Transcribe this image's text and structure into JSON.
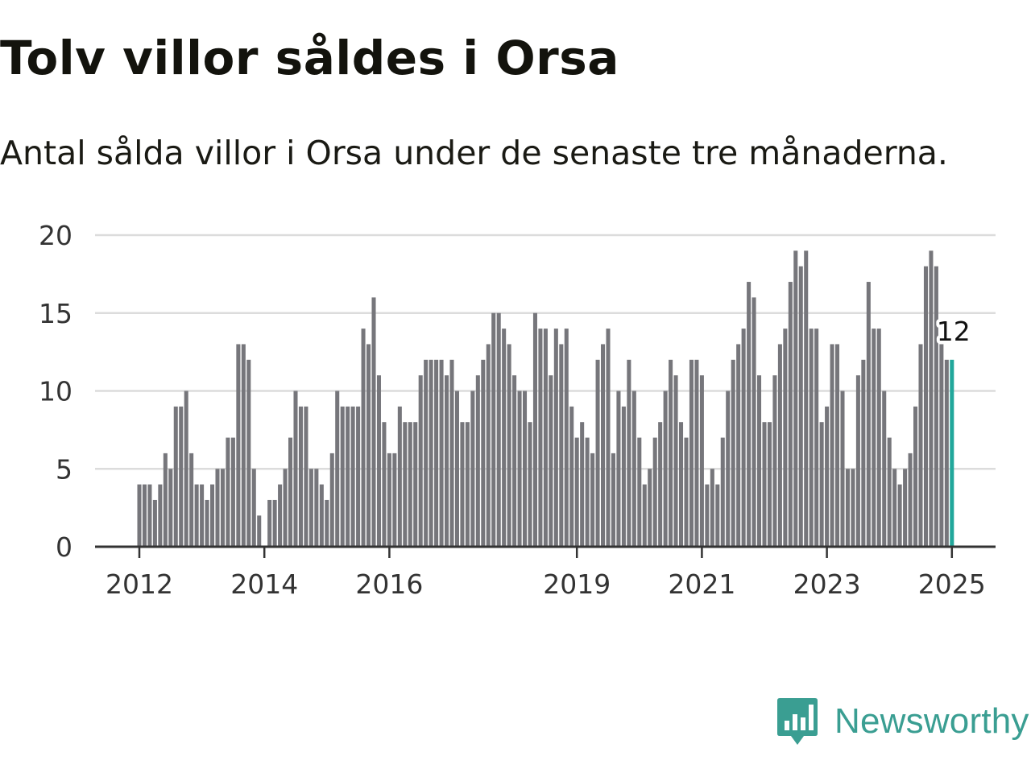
{
  "title": "Tolv villor såldes i Orsa",
  "subtitle": "Antal sålda villor i Orsa under de senaste tre månaderna.",
  "brand": {
    "name": "Newsworthy",
    "logo_icon": "newsworthy-bar-chart-logo-icon",
    "color": "#3a9e92"
  },
  "chart_data": {
    "type": "bar",
    "title": "",
    "xlabel": "",
    "ylabel": "",
    "ylim": [
      0,
      20
    ],
    "yticks": [
      0,
      5,
      10,
      15,
      20
    ],
    "xlim": [
      2011.25,
      2025.75
    ],
    "xticks": [
      "2012",
      "2014",
      "2016",
      "2019",
      "2021",
      "2023",
      "2025"
    ],
    "grid": true,
    "bar_color": "#76767b",
    "highlight_color": "#22a79b",
    "series": [
      {
        "start": "2012-01",
        "frequency": "monthly",
        "values": [
          4,
          4,
          4,
          3,
          4,
          6,
          5,
          9,
          9,
          10,
          6,
          4,
          4,
          3,
          4,
          5,
          5,
          7,
          7,
          13,
          13,
          12,
          5,
          2,
          0,
          3,
          3,
          4,
          5,
          7,
          10,
          9,
          9,
          5,
          5,
          4,
          3,
          6,
          10,
          9,
          9,
          9,
          9,
          14,
          13,
          16,
          11,
          8,
          6,
          6,
          9,
          8,
          8,
          8,
          11,
          12,
          12,
          12,
          12,
          11,
          12,
          10,
          8,
          8,
          10,
          11,
          12,
          13,
          15,
          15,
          14,
          13,
          11,
          10,
          10,
          8,
          15,
          14,
          14,
          11,
          14,
          13,
          14,
          9,
          7,
          8,
          7,
          6,
          12,
          13,
          14,
          6,
          10,
          9,
          12,
          10,
          7,
          4,
          5,
          7,
          8,
          10,
          12,
          11,
          8,
          7,
          12,
          12,
          11,
          4,
          5,
          4,
          7,
          10,
          12,
          13,
          14,
          17,
          16,
          11,
          8,
          8,
          11,
          13,
          14,
          17,
          19,
          18,
          19,
          14,
          14,
          8,
          9,
          13,
          13,
          10,
          5,
          5,
          11,
          12,
          17,
          14,
          14,
          10,
          7,
          5,
          4,
          5,
          6,
          9,
          13,
          18,
          19,
          18,
          13,
          12,
          12
        ]
      }
    ],
    "highlight": {
      "label": "12",
      "value": 12,
      "index": "last"
    }
  }
}
